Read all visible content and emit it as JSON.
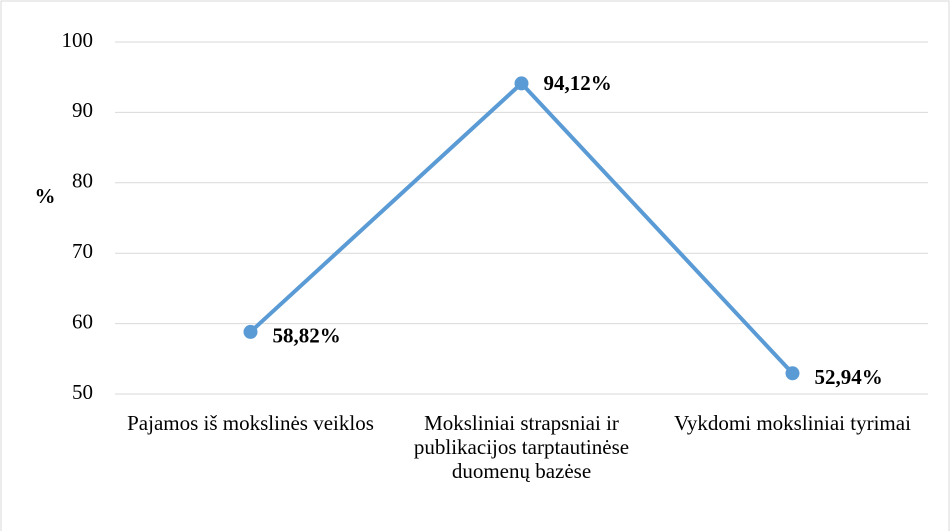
{
  "chart_data": {
    "type": "line",
    "y_label": "%",
    "categories": [
      "Pajamos iš mokslinės veiklos",
      "Moksliniai strapsniai ir publikacijos tarptautinėse duomenų bazėse",
      "Vykdomi moksliniai tyrimai"
    ],
    "values": [
      58.82,
      94.12,
      52.94
    ],
    "value_labels": [
      "58,82%",
      "94,12%",
      "52,94%"
    ],
    "color": "#5b9bd5",
    "ylim": [
      50,
      100
    ],
    "yticks": [
      50,
      60,
      70,
      80,
      90,
      100
    ],
    "grid": true
  }
}
